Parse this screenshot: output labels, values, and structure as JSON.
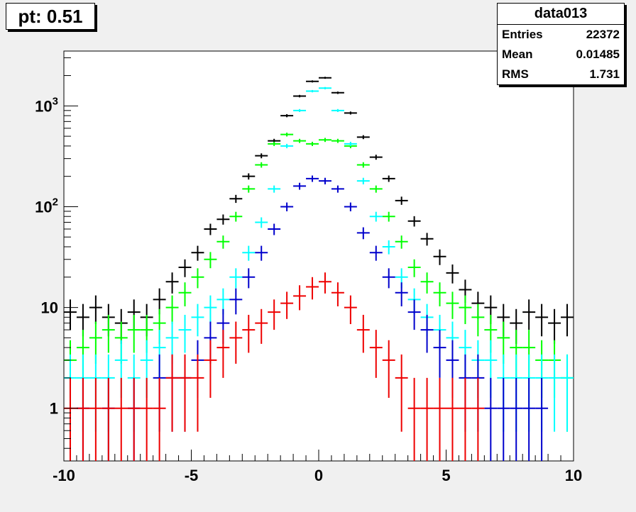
{
  "title_box": {
    "label": "pt: 0.51"
  },
  "stats_box": {
    "name": "data013",
    "rows": [
      {
        "label": "Entries",
        "value": "22372"
      },
      {
        "label": "Mean",
        "value": "0.01485"
      },
      {
        "label": "RMS",
        "value": "1.731"
      }
    ]
  },
  "chart_data": {
    "type": "scatter",
    "title": "",
    "xlabel": "",
    "ylabel": "",
    "xlim": [
      -10,
      10
    ],
    "ylim": [
      0.3,
      3500
    ],
    "yscale": "log",
    "grid": false,
    "legend": "none",
    "x_ticks": [
      -10,
      -5,
      0,
      5,
      10
    ],
    "y_ticks": [
      {
        "value": 1,
        "label": "1"
      },
      {
        "value": 10,
        "label": "10"
      },
      {
        "value": 100,
        "label": "10^2"
      },
      {
        "value": 1000,
        "label": "10^3"
      }
    ],
    "bin_width": 0.5,
    "series": [
      {
        "color": "#000000",
        "x": [
          -9.75,
          -9.25,
          -8.75,
          -8.25,
          -7.75,
          -7.25,
          -6.75,
          -6.25,
          -5.75,
          -5.25,
          -4.75,
          -4.25,
          -3.75,
          -3.25,
          -2.75,
          -2.25,
          -1.75,
          -1.25,
          -0.75,
          -0.25,
          0.25,
          0.75,
          1.25,
          1.75,
          2.25,
          2.75,
          3.25,
          3.75,
          4.25,
          4.75,
          5.25,
          5.75,
          6.25,
          6.75,
          7.25,
          7.75,
          8.25,
          8.75,
          9.25,
          9.75
        ],
        "y": [
          9,
          8,
          10,
          8,
          7,
          9,
          8,
          12,
          18,
          25,
          35,
          60,
          75,
          120,
          200,
          320,
          450,
          800,
          1250,
          1750,
          1900,
          1350,
          850,
          490,
          310,
          190,
          115,
          72,
          48,
          32,
          22,
          15,
          11,
          10,
          8,
          7,
          9,
          8,
          7,
          8
        ]
      },
      {
        "color": "#00ff00",
        "x": [
          -9.75,
          -9.25,
          -8.75,
          -8.25,
          -7.75,
          -7.25,
          -6.75,
          -6.25,
          -5.75,
          -5.25,
          -4.75,
          -4.25,
          -3.75,
          -3.25,
          -2.75,
          -2.25,
          -1.75,
          -1.25,
          -0.75,
          -0.25,
          0.25,
          0.75,
          1.25,
          1.75,
          2.25,
          2.75,
          3.25,
          3.75,
          4.25,
          4.75,
          5.25,
          5.75,
          6.25,
          6.75,
          7.25,
          7.75,
          8.25,
          8.75,
          9.25,
          9.75
        ],
        "y": [
          3,
          4,
          5,
          6,
          5,
          6,
          6,
          7,
          10,
          14,
          20,
          30,
          45,
          80,
          150,
          260,
          420,
          520,
          450,
          420,
          460,
          450,
          400,
          260,
          150,
          80,
          45,
          25,
          18,
          14,
          11,
          10,
          8,
          6,
          5,
          4,
          4,
          3,
          3,
          2
        ]
      },
      {
        "color": "#00ffff",
        "x": [
          -9.75,
          -9.25,
          -8.75,
          -8.25,
          -7.75,
          -7.25,
          -6.75,
          -6.25,
          -5.75,
          -5.25,
          -4.75,
          -4.25,
          -3.75,
          -3.25,
          -2.75,
          -2.25,
          -1.75,
          -1.25,
          -0.75,
          -0.25,
          0.25,
          0.75,
          1.25,
          1.75,
          2.25,
          2.75,
          3.25,
          3.75,
          4.25,
          4.75,
          5.25,
          5.75,
          6.25,
          6.75,
          7.25,
          7.75,
          8.25,
          8.75,
          9.25,
          9.75
        ],
        "y": [
          2,
          2,
          2,
          2,
          3,
          2,
          3,
          4,
          5,
          6,
          8,
          10,
          12,
          20,
          35,
          70,
          150,
          400,
          900,
          1400,
          1500,
          900,
          420,
          180,
          80,
          40,
          20,
          12,
          8,
          6,
          5,
          4,
          3,
          3,
          2,
          2,
          2,
          2,
          2,
          2
        ]
      },
      {
        "color": "#0000cc",
        "x": [
          -9.25,
          -8.25,
          -7.25,
          -6.25,
          -5.75,
          -5.25,
          -4.75,
          -4.25,
          -3.75,
          -3.25,
          -2.75,
          -2.25,
          -1.75,
          -1.25,
          -0.75,
          -0.25,
          0.25,
          0.75,
          1.25,
          1.75,
          2.25,
          2.75,
          3.25,
          3.75,
          4.25,
          4.75,
          5.25,
          5.75,
          6.25,
          6.75,
          7.25,
          7.75,
          8.25,
          8.75
        ],
        "y": [
          1,
          1,
          1,
          2,
          2,
          2,
          3,
          5,
          7,
          12,
          20,
          35,
          60,
          100,
          160,
          190,
          180,
          150,
          100,
          55,
          35,
          20,
          14,
          9,
          6,
          4,
          3,
          2,
          2,
          1,
          1,
          1,
          1,
          1
        ]
      },
      {
        "color": "#ee0000",
        "x": [
          -9.75,
          -9.25,
          -8.75,
          -8.25,
          -7.75,
          -7.25,
          -6.75,
          -6.25,
          -5.75,
          -5.25,
          -4.75,
          -4.25,
          -3.75,
          -3.25,
          -2.75,
          -2.25,
          -1.75,
          -1.25,
          -0.75,
          -0.25,
          0.25,
          0.75,
          1.25,
          1.75,
          2.25,
          2.75,
          3.25,
          3.75,
          4.25,
          4.75,
          5.25,
          5.75,
          6.25
        ],
        "y": [
          1,
          1,
          1,
          1,
          1,
          1,
          1,
          1,
          2,
          2,
          2,
          3,
          4,
          5,
          6,
          7,
          9,
          11,
          13,
          16,
          18,
          14,
          10,
          6,
          4,
          3,
          2,
          1,
          1,
          1,
          1,
          1,
          1
        ]
      }
    ]
  }
}
